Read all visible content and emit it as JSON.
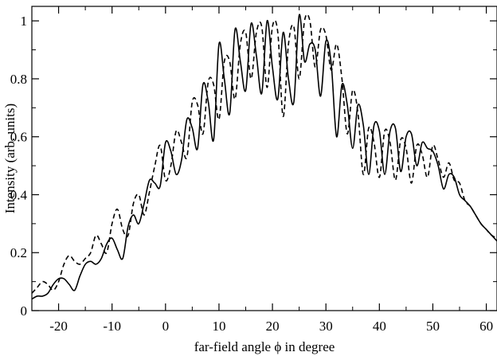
{
  "chart_data": {
    "type": "line",
    "title": "",
    "xlabel": "far-field angle ϕ in degree",
    "ylabel": "Intensity (arb. units)",
    "xlim": [
      -25,
      62
    ],
    "ylim": [
      0,
      1.05
    ],
    "x_ticks": [
      -20,
      -10,
      0,
      10,
      20,
      30,
      40,
      50,
      60
    ],
    "x_tick_labels": [
      "-20",
      "-10",
      "0",
      "10",
      "20",
      "30",
      "40",
      "50",
      "60"
    ],
    "y_ticks": [
      0,
      0.2,
      0.4,
      0.6,
      0.8,
      1
    ],
    "y_tick_labels": [
      "0",
      "0.2",
      "0.4",
      "0.6",
      "0.8",
      "1"
    ],
    "grid": false,
    "legend": "none",
    "series": [
      {
        "style": "solid",
        "color": "#000000",
        "x": [
          -25,
          -24,
          -23,
          -22,
          -21,
          -20,
          -19,
          -18,
          -17,
          -16,
          -15,
          -14,
          -13,
          -12,
          -11,
          -10,
          -9,
          -8,
          -7,
          -6,
          -5,
          -4,
          -3,
          -2,
          -1,
          0,
          1,
          2,
          3,
          4,
          5,
          6,
          7,
          8,
          9,
          10,
          11,
          12,
          13,
          14,
          15,
          16,
          17,
          18,
          19,
          20,
          21,
          22,
          23,
          24,
          25,
          26,
          27,
          28,
          29,
          30,
          31,
          32,
          33,
          34,
          35,
          36,
          37,
          38,
          39,
          40,
          41,
          42,
          43,
          44,
          45,
          46,
          47,
          48,
          49,
          50,
          51,
          52,
          53,
          54,
          55,
          56,
          57,
          58,
          59,
          60,
          61,
          62
        ],
        "y": [
          0.04,
          0.05,
          0.05,
          0.06,
          0.09,
          0.11,
          0.11,
          0.09,
          0.07,
          0.12,
          0.16,
          0.17,
          0.16,
          0.18,
          0.23,
          0.25,
          0.21,
          0.18,
          0.29,
          0.33,
          0.3,
          0.37,
          0.45,
          0.44,
          0.43,
          0.58,
          0.55,
          0.47,
          0.52,
          0.66,
          0.63,
          0.56,
          0.78,
          0.72,
          0.59,
          0.92,
          0.8,
          0.68,
          0.97,
          0.86,
          0.76,
          0.99,
          0.88,
          0.75,
          1.0,
          0.84,
          0.73,
          0.96,
          0.8,
          0.72,
          1.02,
          0.86,
          0.92,
          0.9,
          0.74,
          0.93,
          0.85,
          0.6,
          0.78,
          0.71,
          0.56,
          0.71,
          0.64,
          0.47,
          0.64,
          0.62,
          0.47,
          0.62,
          0.63,
          0.48,
          0.6,
          0.61,
          0.5,
          0.58,
          0.56,
          0.55,
          0.5,
          0.42,
          0.47,
          0.46,
          0.4,
          0.38,
          0.36,
          0.33,
          0.3,
          0.28,
          0.26,
          0.24
        ]
      },
      {
        "style": "dashed",
        "color": "#000000",
        "x": [
          -25,
          -24,
          -23,
          -22,
          -21,
          -20,
          -19,
          -18,
          -17,
          -16,
          -15,
          -14,
          -13,
          -12,
          -11,
          -10,
          -9,
          -8,
          -7,
          -6,
          -5,
          -4,
          -3,
          -2,
          -1,
          0,
          1,
          2,
          3,
          4,
          5,
          6,
          7,
          8,
          9,
          10,
          11,
          12,
          13,
          14,
          15,
          16,
          17,
          18,
          19,
          20,
          21,
          22,
          23,
          24,
          25,
          26,
          27,
          28,
          29,
          30,
          31,
          32,
          33,
          34,
          35,
          36,
          37,
          38,
          39,
          40,
          41,
          42,
          43,
          44,
          45,
          46,
          47,
          48,
          49,
          50,
          51,
          52,
          53,
          54,
          55,
          56,
          57,
          58,
          59,
          60,
          61,
          62
        ],
        "y": [
          0.06,
          0.08,
          0.1,
          0.09,
          0.07,
          0.1,
          0.16,
          0.19,
          0.17,
          0.16,
          0.18,
          0.2,
          0.26,
          0.23,
          0.2,
          0.3,
          0.35,
          0.28,
          0.26,
          0.37,
          0.4,
          0.33,
          0.41,
          0.5,
          0.57,
          0.45,
          0.5,
          0.62,
          0.58,
          0.53,
          0.72,
          0.71,
          0.61,
          0.79,
          0.78,
          0.66,
          0.86,
          0.86,
          0.73,
          0.92,
          0.96,
          0.8,
          0.96,
          0.98,
          0.77,
          0.98,
          0.96,
          0.67,
          0.92,
          0.98,
          0.8,
          1.0,
          1.0,
          0.84,
          0.97,
          0.95,
          0.83,
          0.92,
          0.8,
          0.61,
          0.76,
          0.68,
          0.47,
          0.63,
          0.58,
          0.46,
          0.62,
          0.58,
          0.45,
          0.59,
          0.56,
          0.44,
          0.57,
          0.54,
          0.46,
          0.57,
          0.52,
          0.46,
          0.51,
          0.45,
          0.44,
          0.38,
          0.36,
          0.33,
          0.3,
          0.28,
          0.26,
          0.25
        ]
      }
    ]
  }
}
